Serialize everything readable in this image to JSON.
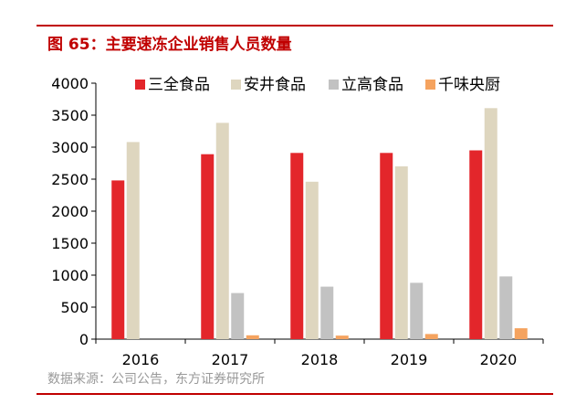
{
  "figure_title": "图 65：主要速冻企业销售人员数量",
  "source_note": "数据来源：公司公告，东方证券研究所",
  "colors": {
    "accent": "#c00000",
    "series": [
      "#e3262b",
      "#ded6bf",
      "#c2c2c2",
      "#f5a35f"
    ]
  },
  "chart_data": {
    "type": "bar",
    "title": "",
    "xlabel": "",
    "ylabel": "",
    "ylim": [
      0,
      4000
    ],
    "yticks": [
      "0",
      "500",
      "1000",
      "1500",
      "2000",
      "2500",
      "3000",
      "3500",
      "4000"
    ],
    "grid": false,
    "legend_position": "top",
    "categories": [
      "2016",
      "2017",
      "2018",
      "2019",
      "2020"
    ],
    "series": [
      {
        "name": "三全食品",
        "values": [
          2480,
          2890,
          2910,
          2910,
          2950
        ]
      },
      {
        "name": "安井食品",
        "values": [
          3080,
          3380,
          2460,
          2700,
          3610
        ]
      },
      {
        "name": "立高食品",
        "values": [
          null,
          720,
          820,
          880,
          980
        ]
      },
      {
        "name": "千味央厨",
        "values": [
          null,
          60,
          55,
          80,
          170
        ]
      }
    ]
  }
}
